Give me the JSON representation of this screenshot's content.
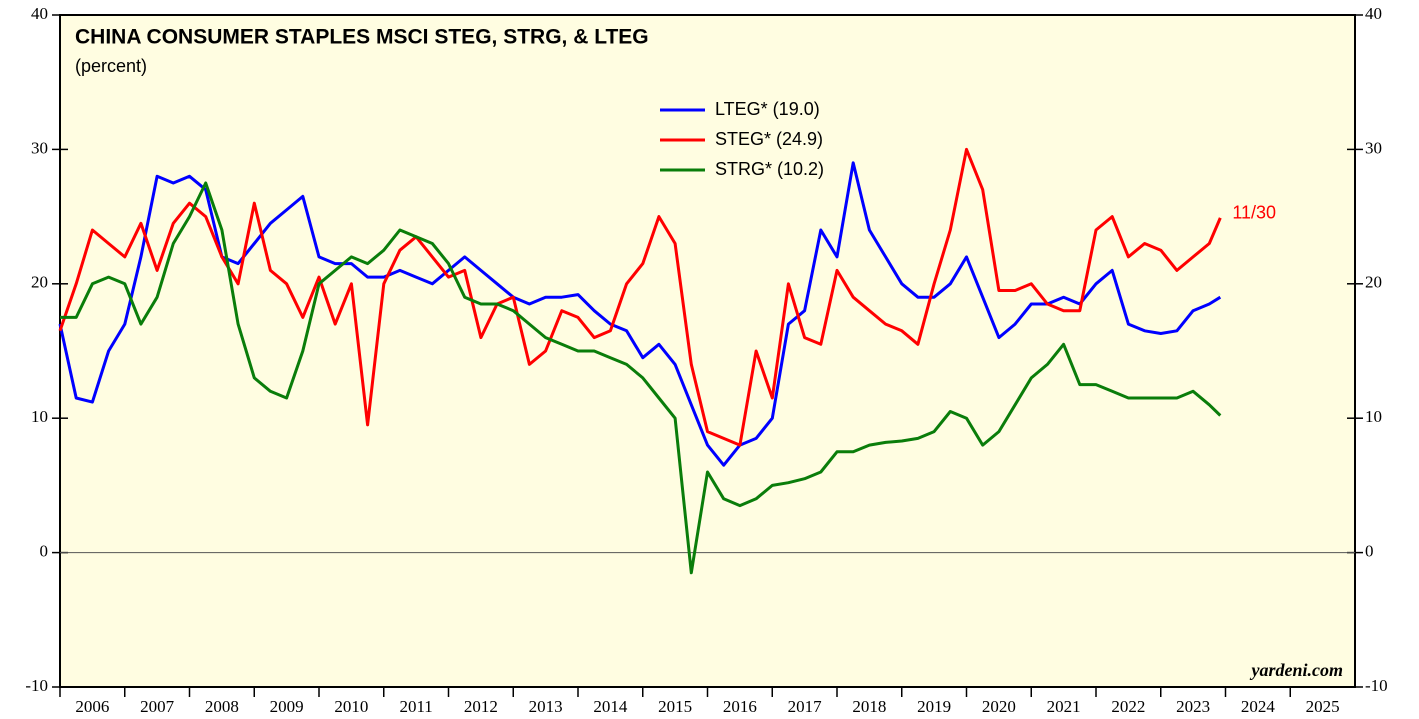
{
  "chart_data": {
    "type": "line",
    "title": "CHINA CONSUMER STAPLES MSCI STEG, STRG, & LTEG",
    "subtitle": "(percent)",
    "source": "yardeni.com",
    "annotation": "11/30",
    "legend": "top",
    "grid": false,
    "xlim": [
      2006,
      2026
    ],
    "xticks": [
      2006,
      2007,
      2008,
      2009,
      2010,
      2011,
      2012,
      2013,
      2014,
      2015,
      2016,
      2017,
      2018,
      2019,
      2020,
      2021,
      2022,
      2023,
      2024,
      2025
    ],
    "ylim": [
      -10,
      40
    ],
    "yticks": [
      -10,
      0,
      10,
      20,
      30,
      40
    ],
    "x": [
      2006,
      2006.25,
      2006.5,
      2006.75,
      2007,
      2007.25,
      2007.5,
      2007.75,
      2008,
      2008.25,
      2008.5,
      2008.75,
      2009,
      2009.25,
      2009.5,
      2009.75,
      2010,
      2010.25,
      2010.5,
      2010.75,
      2011,
      2011.25,
      2011.5,
      2011.75,
      2012,
      2012.25,
      2012.5,
      2012.75,
      2013,
      2013.25,
      2013.5,
      2013.75,
      2014,
      2014.25,
      2014.5,
      2014.75,
      2015,
      2015.25,
      2015.5,
      2015.75,
      2016,
      2016.25,
      2016.5,
      2016.75,
      2017,
      2017.25,
      2017.5,
      2017.75,
      2018,
      2018.25,
      2018.5,
      2018.75,
      2019,
      2019.25,
      2019.5,
      2019.75,
      2020,
      2020.25,
      2020.5,
      2020.75,
      2021,
      2021.25,
      2021.5,
      2021.75,
      2022,
      2022.25,
      2022.5,
      2022.75,
      2023,
      2023.25,
      2023.5,
      2023.75,
      2023.92
    ],
    "series": [
      {
        "name": "LTEG* (19.0)",
        "color": "#0000ff",
        "values": [
          17,
          11.5,
          11.2,
          15,
          17,
          22,
          28,
          27.5,
          28,
          27,
          22,
          21.5,
          23,
          24.5,
          25.5,
          26.5,
          22,
          21.5,
          21.5,
          20.5,
          20.5,
          21,
          20.5,
          20,
          21,
          22,
          21,
          20,
          19,
          18.5,
          19,
          19,
          19.2,
          18,
          17,
          16.5,
          14.5,
          15.5,
          14,
          11,
          8,
          6.5,
          8,
          8.5,
          10,
          17,
          18,
          24,
          22,
          29,
          24,
          22,
          20,
          19,
          19,
          20,
          22,
          19,
          16,
          17,
          18.5,
          18.5,
          19,
          18.5,
          20,
          21,
          17,
          16.5,
          16.3,
          16.5,
          18,
          18.5,
          19.0
        ]
      },
      {
        "name": "STEG* (24.9)",
        "color": "#ff0000",
        "values": [
          16.5,
          20,
          24,
          23,
          22,
          24.5,
          21,
          24.5,
          26,
          25,
          22,
          20,
          26,
          21,
          20,
          17.5,
          20.5,
          17,
          20,
          9.5,
          20,
          22.5,
          23.5,
          22,
          20.5,
          21,
          16,
          18.5,
          19,
          14,
          15,
          18,
          17.5,
          16,
          16.5,
          20,
          21.5,
          25,
          23,
          14,
          9,
          8.5,
          8,
          15,
          11.5,
          20,
          16,
          15.5,
          21,
          19,
          18,
          17,
          16.5,
          15.5,
          20,
          24,
          30,
          27,
          19.5,
          19.5,
          20,
          18.5,
          18,
          18,
          24,
          25,
          22,
          23,
          22.5,
          21,
          22,
          23,
          24.9
        ]
      },
      {
        "name": "STRG* (10.2)",
        "color": "#0a7d0a",
        "values": [
          17.5,
          17.5,
          20,
          20.5,
          20,
          17,
          19,
          23,
          25,
          27.5,
          24,
          17,
          13,
          12,
          11.5,
          15,
          20,
          21,
          22,
          21.5,
          22.5,
          24,
          23.5,
          23,
          21.5,
          19,
          18.5,
          18.5,
          18,
          17,
          16,
          15.5,
          15,
          15,
          14.5,
          14,
          13,
          11.5,
          10,
          -1.5,
          6,
          4,
          3.5,
          4,
          5,
          5.2,
          5.5,
          6,
          7.5,
          7.5,
          8,
          8.2,
          8.3,
          8.5,
          9,
          10.5,
          10,
          8,
          9,
          11,
          13,
          14,
          15.5,
          12.5,
          12.5,
          12,
          11.5,
          11.5,
          11.5,
          11.5,
          12,
          11,
          10.2
        ]
      }
    ]
  }
}
